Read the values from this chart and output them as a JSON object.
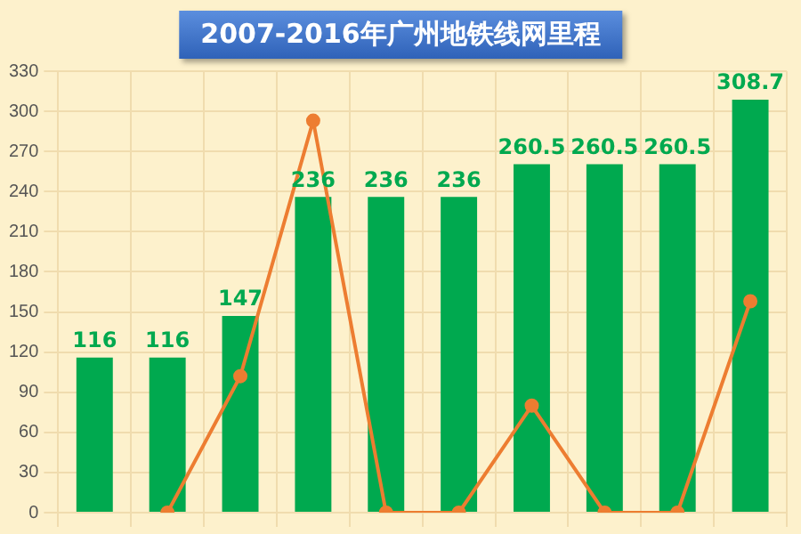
{
  "chart_data": {
    "type": "bar",
    "title": "2007-2016年广州地铁线网里程",
    "categories": [
      null,
      null,
      null,
      null,
      null,
      null,
      null,
      null,
      null,
      null
    ],
    "series": [
      {
        "color": "#00a94f",
        "values": [
          116,
          116,
          147,
          236,
          236,
          236,
          260.5,
          260.5,
          260.5,
          308.7
        ],
        "value_labels": [
          "116",
          "116",
          "147",
          "236",
          "236",
          "236",
          "260.5",
          "260.5",
          "260.5",
          "308.7"
        ]
      },
      {
        "type": "line",
        "color": "#ed7d31",
        "values": [
          null,
          0,
          102,
          293,
          0,
          0,
          80,
          0,
          0,
          158
        ]
      }
    ],
    "ylim": [
      0,
      330
    ],
    "yticks": [
      0,
      30,
      60,
      90,
      120,
      150,
      180,
      210,
      240,
      270,
      300,
      330
    ],
    "grid": true,
    "legend": false,
    "marker": "circle",
    "tick_labels": "y"
  }
}
